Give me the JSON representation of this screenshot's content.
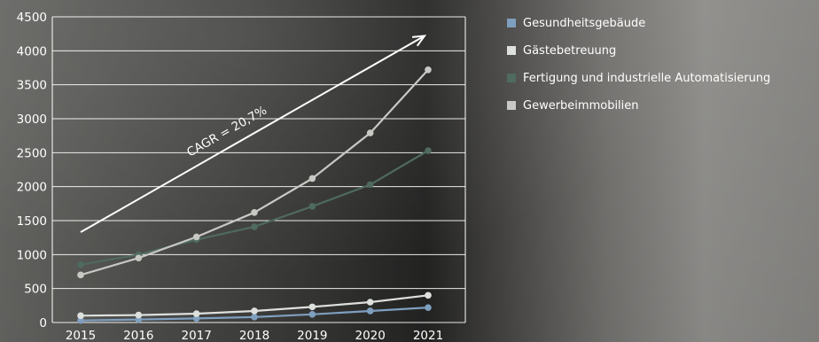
{
  "chart_data": {
    "type": "line",
    "x": [
      "2015",
      "2016",
      "2017",
      "2018",
      "2019",
      "2020",
      "2021"
    ],
    "ylim": [
      0,
      4500
    ],
    "yticks": [
      0,
      500,
      1000,
      1500,
      2000,
      2500,
      3000,
      3500,
      4000,
      4500
    ],
    "grid": true,
    "legend_position": "top-right",
    "series": [
      {
        "name": "Gesundheitsgebäude",
        "color": "#7f9fbf",
        "values": [
          30,
          45,
          60,
          80,
          120,
          170,
          220
        ]
      },
      {
        "name": "Gästebetreuung",
        "color": "#dde0dc",
        "values": [
          100,
          110,
          130,
          170,
          230,
          300,
          400
        ]
      },
      {
        "name": "Fertigung und industrielle Automatisierung",
        "color": "#4f6a5f",
        "values": [
          850,
          1000,
          1220,
          1410,
          1710,
          2030,
          2530
        ]
      },
      {
        "name": "Gewerbeimmobilien",
        "color": "#c8c8c4",
        "values": [
          700,
          950,
          1260,
          1620,
          2120,
          2790,
          3720
        ]
      }
    ],
    "annotation": {
      "text": "CAGR = 20,7%",
      "from": [
        "2015",
        1330
      ],
      "to": [
        "2021",
        4220
      ]
    }
  }
}
